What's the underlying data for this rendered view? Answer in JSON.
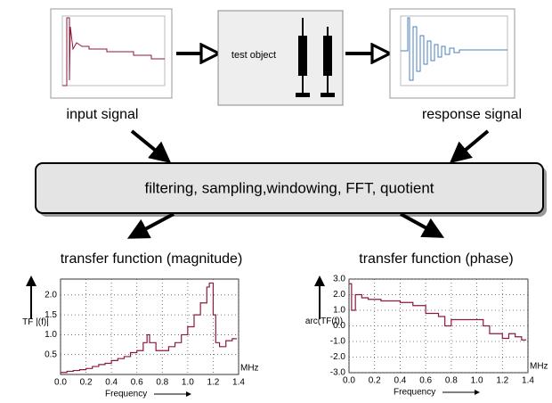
{
  "diagram": {
    "input_label": "input signal",
    "test_object": "test object",
    "response_label": "response signal",
    "process": "filtering, sampling,windowing, FFT, quotient"
  },
  "chart_data": [
    {
      "type": "step",
      "title": "transfer function (magnitude)",
      "y_label": "TF |(f)|",
      "x_label": "Frequency",
      "x_unit": "MHz",
      "color": "#8b1a3a",
      "x": [
        0,
        0.05,
        0.1,
        0.15,
        0.2,
        0.25,
        0.3,
        0.35,
        0.4,
        0.45,
        0.5,
        0.55,
        0.6,
        0.65,
        0.68,
        0.7,
        0.75,
        0.8,
        0.85,
        0.9,
        0.95,
        1.0,
        1.05,
        1.1,
        1.15,
        1.17,
        1.2,
        1.22,
        1.25,
        1.3,
        1.35
      ],
      "values": [
        0.05,
        0.08,
        0.1,
        0.12,
        0.15,
        0.2,
        0.25,
        0.28,
        0.35,
        0.4,
        0.45,
        0.55,
        0.6,
        0.8,
        1.0,
        0.8,
        0.6,
        0.6,
        0.7,
        0.8,
        1.0,
        1.2,
        1.5,
        1.8,
        2.2,
        2.3,
        1.5,
        0.8,
        0.7,
        0.85,
        0.9
      ],
      "xlim": [
        0,
        1.4
      ],
      "ylim": [
        0,
        2.4
      ],
      "grid": true,
      "xticks": [
        {
          "value": 0,
          "label": "0.0"
        },
        {
          "value": 0.2,
          "label": "0.2"
        },
        {
          "value": 0.4,
          "label": "0.4"
        },
        {
          "value": 0.6,
          "label": "0.6"
        },
        {
          "value": 0.8,
          "label": "0.8"
        },
        {
          "value": 1,
          "label": "1.0"
        },
        {
          "value": 1.2,
          "label": "1.2"
        },
        {
          "value": 1.4,
          "label": "1.4"
        }
      ],
      "yticks": [
        {
          "value": 0.5,
          "label": "0.5"
        },
        {
          "value": 1,
          "label": "1.0"
        },
        {
          "value": 1.5,
          "label": "1.5"
        },
        {
          "value": 2,
          "label": "2.0"
        }
      ]
    },
    {
      "type": "step",
      "title": "transfer function (phase)",
      "y_label": "arc(TF(f))",
      "x_label": "Frequency",
      "x_unit": "MHz",
      "color": "#8b1a3a",
      "x": [
        0,
        0.02,
        0.05,
        0.1,
        0.15,
        0.25,
        0.4,
        0.5,
        0.6,
        0.7,
        0.75,
        0.8,
        1.0,
        1.05,
        1.1,
        1.2,
        1.25,
        1.3,
        1.35
      ],
      "values": [
        2.7,
        1.0,
        2.0,
        1.8,
        1.7,
        1.6,
        1.5,
        1.3,
        0.8,
        0.6,
        0.0,
        0.4,
        0.4,
        0.0,
        -0.5,
        -0.8,
        -0.5,
        -0.7,
        -0.9
      ],
      "xlim": [
        0,
        1.4
      ],
      "ylim": [
        -3,
        3
      ],
      "grid": true,
      "xticks": [
        {
          "value": 0,
          "label": "0.0"
        },
        {
          "value": 0.2,
          "label": "0.2"
        },
        {
          "value": 0.4,
          "label": "0.4"
        },
        {
          "value": 0.6,
          "label": "0.6"
        },
        {
          "value": 0.8,
          "label": "0.8"
        },
        {
          "value": 1,
          "label": "1.0"
        },
        {
          "value": 1.2,
          "label": "1.2"
        },
        {
          "value": 1.4,
          "label": "1.4"
        }
      ],
      "yticks": [
        {
          "value": -3,
          "label": "-3.0"
        },
        {
          "value": -2,
          "label": "-2.0"
        },
        {
          "value": -1,
          "label": "-1.0"
        },
        {
          "value": 0,
          "label": "0.0"
        },
        {
          "value": 1,
          "label": "1.0"
        },
        {
          "value": 2,
          "label": "2.0"
        },
        {
          "value": 3,
          "label": "3.0"
        }
      ]
    }
  ]
}
